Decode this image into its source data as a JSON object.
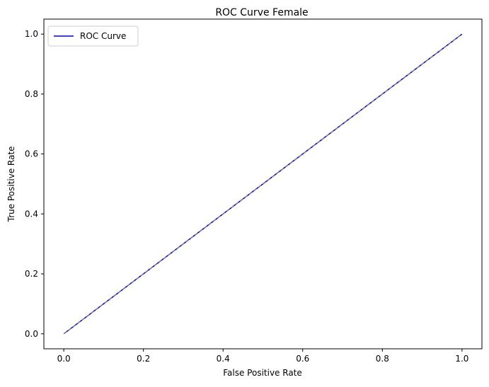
{
  "chart_data": {
    "type": "line",
    "title": "ROC Curve Female",
    "xlabel": "False Positive Rate",
    "ylabel": "True Positive Rate",
    "xlim": [
      -0.05,
      1.05
    ],
    "ylim": [
      -0.05,
      1.05
    ],
    "xticks": [
      0.0,
      0.2,
      0.4,
      0.6,
      0.8,
      1.0
    ],
    "xtick_labels": [
      "0.0",
      "0.2",
      "0.4",
      "0.6",
      "0.8",
      "1.0"
    ],
    "yticks": [
      0.0,
      0.2,
      0.4,
      0.6,
      0.8,
      1.0
    ],
    "ytick_labels": [
      "0.0",
      "0.2",
      "0.4",
      "0.6",
      "0.8",
      "1.0"
    ],
    "grid": false,
    "legend_position": "upper left",
    "series": [
      {
        "name": "ROC Curve",
        "x": [
          0.0,
          1.0
        ],
        "y": [
          0.0,
          1.0
        ],
        "color": "#0000cc",
        "style": "solid"
      },
      {
        "x": [
          0.0,
          1.0
        ],
        "y": [
          0.0,
          1.0
        ],
        "color": "#808080",
        "style": "dashed"
      }
    ]
  }
}
